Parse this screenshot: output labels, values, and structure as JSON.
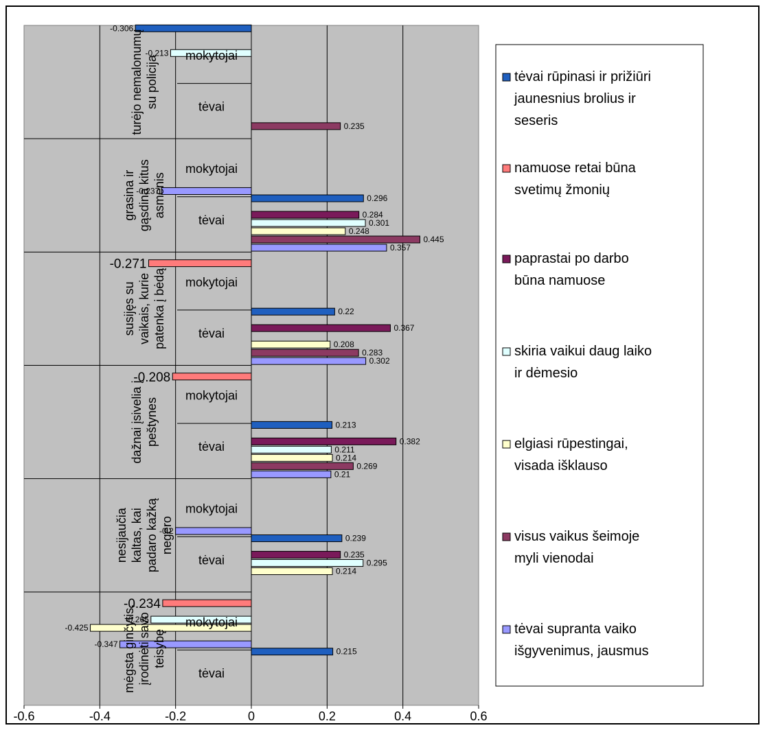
{
  "chart_data": {
    "type": "bar",
    "orientation": "horizontal",
    "xlim": [
      -0.6,
      0.6
    ],
    "x_ticks": [
      "-0.6",
      "-0.4",
      "-0.2",
      "0",
      "0.2",
      "0.4",
      "0.6"
    ],
    "legend_position": "right",
    "grid": true,
    "series": [
      {
        "name": "tėvai rūpinasi ir prižiūri jaunesnius brolius ir seseris",
        "color": "#1F5FBF"
      },
      {
        "name": "namuose retai būna svetimų žmonių",
        "color": "#FF7B7B"
      },
      {
        "name": "paprastai po darbo būna namuose",
        "color": "#7A1A5A"
      },
      {
        "name": "skiria vaikui daug laiko ir dėmesio",
        "color": "#E0FFFF"
      },
      {
        "name": "elgiasi rūpestingai, visada išklauso",
        "color": "#FFFFCC"
      },
      {
        "name": "visus vaikus šeimoje myli vienodai",
        "color": "#8C3A62"
      },
      {
        "name": "tėvai supranta vaiko išgyvenimus, jausmus",
        "color": "#9999FF"
      }
    ],
    "groups": [
      {
        "label": "turėjo nemalonumų su policija",
        "subgroups": [
          {
            "label": "mokytojai",
            "bars": [
              {
                "series": 0,
                "value": -0.306,
                "label": "-0.306"
              },
              {
                "series": 3,
                "value": -0.213,
                "label": "-0.213"
              }
            ]
          },
          {
            "label": "tėvai",
            "bars": [
              {
                "series": 5,
                "value": 0.235,
                "label": "0.235"
              }
            ]
          }
        ]
      },
      {
        "label": "grasina ir gąsdina kitus asmenis",
        "subgroups": [
          {
            "label": "mokytojai",
            "bars": [
              {
                "series": 6,
                "value": -0.237,
                "label": "-0.237"
              }
            ]
          },
          {
            "label": "tėvai",
            "bars": [
              {
                "series": 0,
                "value": 0.296,
                "label": "0.296"
              },
              {
                "series": 2,
                "value": 0.284,
                "label": "0.284"
              },
              {
                "series": 3,
                "value": 0.301,
                "label": "0.301"
              },
              {
                "series": 4,
                "value": 0.248,
                "label": "0.248"
              },
              {
                "series": 5,
                "value": 0.445,
                "label": "0.445"
              },
              {
                "series": 6,
                "value": 0.357,
                "label": "0.357"
              }
            ]
          }
        ]
      },
      {
        "label": "susijęs su vaikais, kurie patenka į bėdą",
        "subgroups": [
          {
            "label": "mokytojai",
            "bars": [
              {
                "series": 1,
                "value": -0.271,
                "label": "-0.271"
              }
            ]
          },
          {
            "label": "tėvai",
            "bars": [
              {
                "series": 0,
                "value": 0.22,
                "label": "0.22"
              },
              {
                "series": 2,
                "value": 0.367,
                "label": "0.367"
              },
              {
                "series": 4,
                "value": 0.208,
                "label": "0.208"
              },
              {
                "series": 5,
                "value": 0.283,
                "label": "0.283"
              },
              {
                "series": 6,
                "value": 0.302,
                "label": "0.302"
              }
            ]
          }
        ]
      },
      {
        "label": "dažnai įsivelia į peštynes",
        "subgroups": [
          {
            "label": "mokytojai",
            "bars": [
              {
                "series": 1,
                "value": -0.208,
                "label": "-0.208"
              }
            ]
          },
          {
            "label": "tėvai",
            "bars": [
              {
                "series": 0,
                "value": 0.213,
                "label": "0.213"
              },
              {
                "series": 2,
                "value": 0.382,
                "label": "0.382"
              },
              {
                "series": 3,
                "value": 0.211,
                "label": "0.211"
              },
              {
                "series": 4,
                "value": 0.214,
                "label": "0.214"
              },
              {
                "series": 5,
                "value": 0.269,
                "label": "0.269"
              },
              {
                "series": 6,
                "value": 0.21,
                "label": "0.21"
              }
            ]
          }
        ]
      },
      {
        "label": "nesijaučia kaltas, kai padaro kažką negero",
        "subgroups": [
          {
            "label": "mokytojai",
            "bars": [
              {
                "series": 6,
                "value": -0.2,
                "label": "-0.2"
              }
            ]
          },
          {
            "label": "tėvai",
            "bars": [
              {
                "series": 0,
                "value": 0.239,
                "label": "0.239"
              },
              {
                "series": 2,
                "value": 0.235,
                "label": "0.235"
              },
              {
                "series": 3,
                "value": 0.295,
                "label": "0.295"
              },
              {
                "series": 4,
                "value": 0.214,
                "label": "0.214"
              }
            ]
          }
        ]
      },
      {
        "label": "mėgsta ginčytis, įrodinėti savo teisybę",
        "subgroups": [
          {
            "label": "mokytojai",
            "bars": [
              {
                "series": 1,
                "value": -0.234,
                "label": "-0.234"
              },
              {
                "series": 3,
                "value": -0.265,
                "label": "-0.265"
              },
              {
                "series": 4,
                "value": -0.425,
                "label": "-0.425"
              },
              {
                "series": 6,
                "value": -0.347,
                "label": "-0.347"
              }
            ]
          },
          {
            "label": "tėvai",
            "bars": [
              {
                "series": 0,
                "value": 0.215,
                "label": "0.215"
              }
            ]
          }
        ]
      }
    ]
  }
}
